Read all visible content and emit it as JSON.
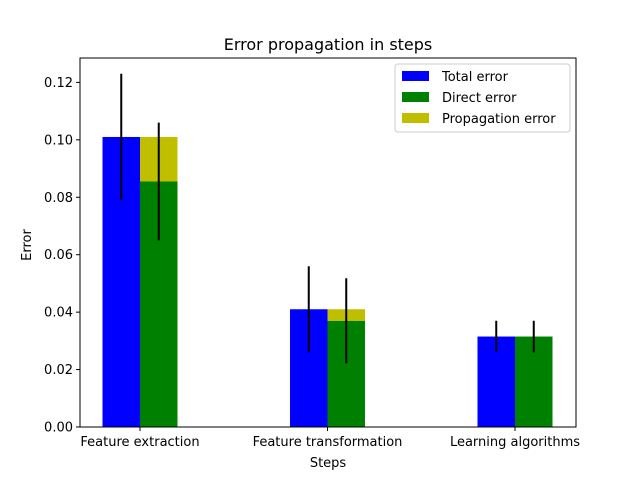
{
  "chart_data": {
    "type": "bar",
    "title": "Error propagation in steps",
    "xlabel": "Steps",
    "ylabel": "Error",
    "ylim": [
      0,
      0.1285
    ],
    "yticks": [
      "0.00",
      "0.02",
      "0.04",
      "0.06",
      "0.08",
      "0.10",
      "0.12"
    ],
    "ytick_values": [
      0,
      0.02,
      0.04,
      0.06,
      0.08,
      0.1,
      0.12
    ],
    "categories": [
      "Feature extraction",
      "Feature transformation",
      "Learning algorithms"
    ],
    "grid": false,
    "legend_position": "top-right",
    "series": [
      {
        "name": "Total error",
        "color": "#0000ff",
        "values": [
          0.101,
          0.041,
          0.0315
        ],
        "errors": [
          0.022,
          0.015,
          0.0055
        ]
      },
      {
        "name": "Direct error",
        "color": "#008000",
        "values": [
          0.0855,
          0.037,
          0.0315
        ],
        "errors": [
          0.0205,
          0.0148,
          0.0055
        ]
      },
      {
        "name": "Propagation error",
        "color": "#bfbf00",
        "stacked_on": "Direct error",
        "values": [
          0.0155,
          0.004,
          0.0
        ]
      }
    ]
  }
}
